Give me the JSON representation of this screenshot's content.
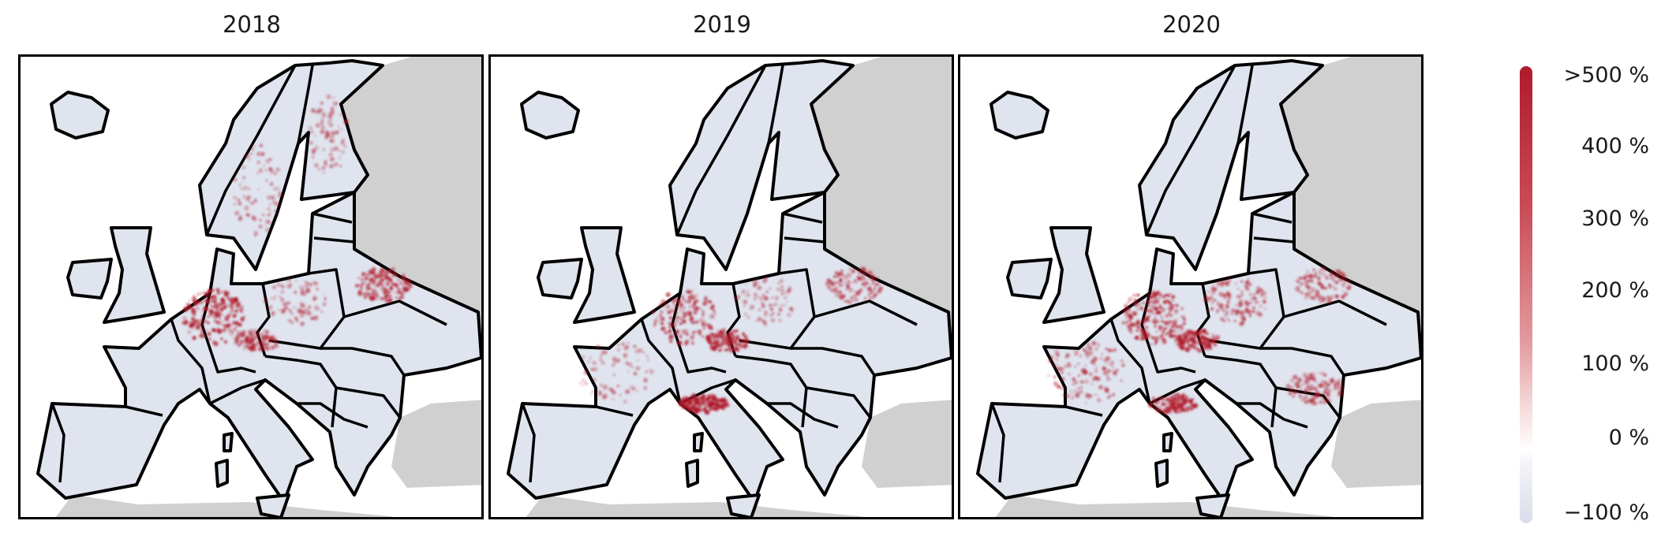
{
  "chart_data": {
    "type": "heatmap",
    "description_kind": "choropleth maps of percentage change",
    "panels": [
      {
        "title": "2018",
        "hotspots": [
          {
            "region": "Germany",
            "level": 5
          },
          {
            "region": "Belarus",
            "level": 4
          },
          {
            "region": "Poland",
            "level": 2
          },
          {
            "region": "Czechia",
            "level": 3
          },
          {
            "region": "Sweden",
            "level": 2
          },
          {
            "region": "Finland",
            "level": 2
          }
        ]
      },
      {
        "title": "2019",
        "hotspots": [
          {
            "region": "Germany",
            "level": 4
          },
          {
            "region": "Czechia",
            "level": 4
          },
          {
            "region": "Northern Italy",
            "level": 5
          },
          {
            "region": "Belarus",
            "level": 3
          },
          {
            "region": "Poland",
            "level": 2
          },
          {
            "region": "France",
            "level": 2
          }
        ]
      },
      {
        "title": "2020",
        "hotspots": [
          {
            "region": "Germany",
            "level": 5
          },
          {
            "region": "Czechia",
            "level": 4
          },
          {
            "region": "France",
            "level": 3
          },
          {
            "region": "Northern Italy",
            "level": 4
          },
          {
            "region": "Romania",
            "level": 3
          },
          {
            "region": "Poland",
            "level": 3
          },
          {
            "region": "Belarus",
            "level": 3
          }
        ]
      }
    ],
    "colorbar": {
      "ticks": [
        ">500 %",
        "400 %",
        "300 %",
        "200 %",
        "100 %",
        "0 %",
        "−100 %"
      ],
      "range": [
        -100,
        500
      ],
      "colors": {
        "max": "#b01a2a",
        "zero": "#ffffff",
        "min": "#d8dde9"
      }
    },
    "colors": {
      "land": "#dfe4ee",
      "outside": "#d0d0d0",
      "sea": "#ffffff",
      "border": "#000000"
    }
  }
}
